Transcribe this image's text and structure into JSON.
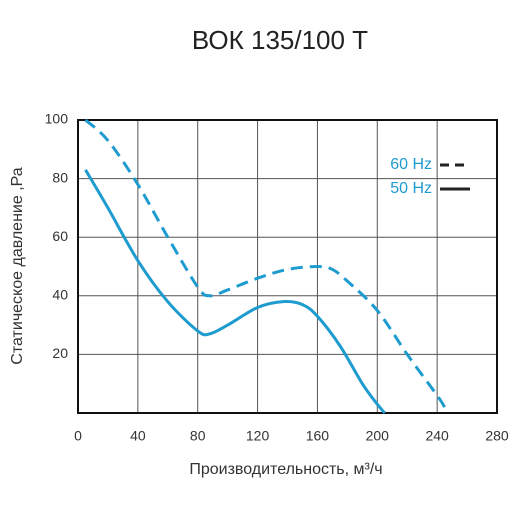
{
  "chart_data": {
    "type": "line",
    "title": "ВОК 135/100 Т",
    "x_label": "Производительность, м³/ч",
    "y_label": "Статическое давление ,Ра",
    "xlim": [
      0,
      280
    ],
    "xticks": [
      0,
      40,
      80,
      120,
      160,
      200,
      240,
      280
    ],
    "ylim": [
      0,
      100
    ],
    "yticks": [
      20,
      40,
      60,
      80,
      100
    ],
    "grid": true,
    "legend": "upper-right",
    "series": [
      {
        "name": "60 Hz",
        "color": "#1e9bcf",
        "dashed": true,
        "x": [
          5,
          20,
          40,
          60,
          80,
          88,
          100,
          120,
          140,
          160,
          170,
          180,
          200,
          220,
          240,
          245
        ],
        "values": [
          100,
          93,
          78,
          60,
          43,
          40,
          42,
          46,
          49,
          50,
          49,
          45,
          35,
          20,
          6,
          2
        ]
      },
      {
        "name": "50 Hz",
        "color": "#1e9bcf",
        "dashed": false,
        "x": [
          5,
          20,
          40,
          60,
          80,
          88,
          100,
          120,
          137,
          150,
          160,
          175,
          190,
          200,
          205
        ],
        "values": [
          83,
          70,
          52,
          38,
          28,
          27,
          30,
          36,
          38,
          37,
          33,
          23,
          10,
          3,
          0
        ]
      }
    ]
  }
}
